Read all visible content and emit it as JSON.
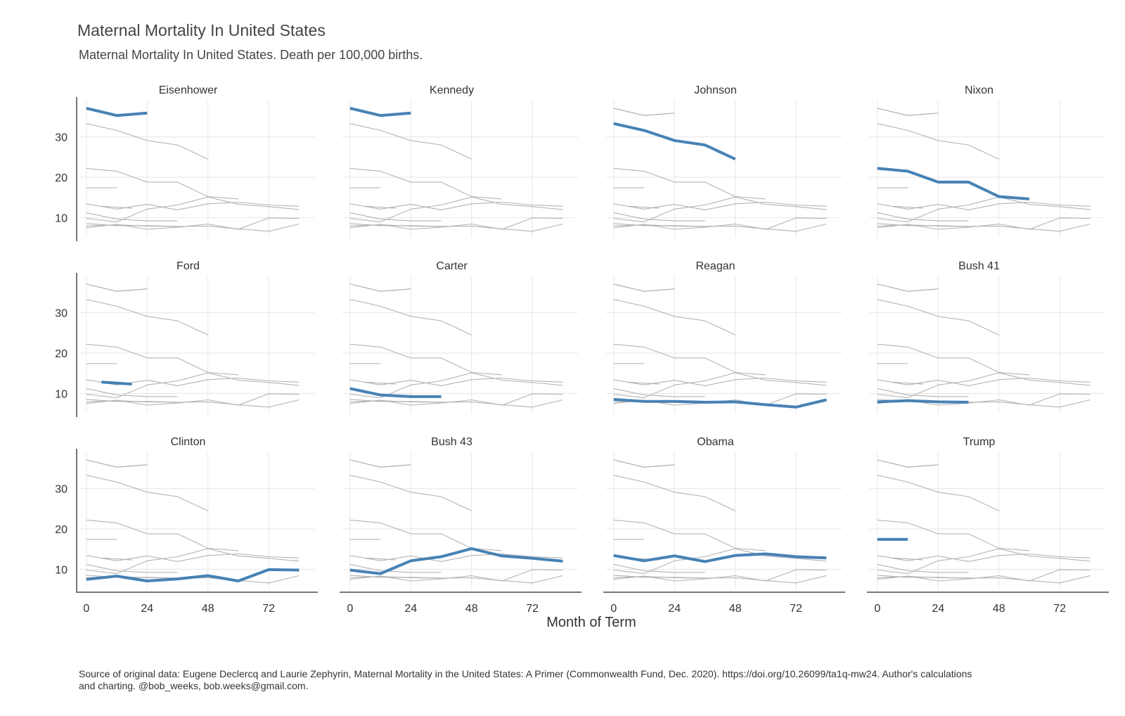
{
  "title": "Maternal Mortality In United States",
  "subtitle": "Maternal Mortality In United States. Death per 100,000 births.",
  "caption": "Source of original data: Eugene Declercq and Laurie Zephyrin, Maternal Mortality in the United States: A Primer (Commonwealth Fund, Dec. 2020). https://doi.org/10.26099/ta1q-mw24. Author's calculations and charting. @bob_weeks, bob.weeks@gmail.com.",
  "colors": {
    "highlight": "#4682b4",
    "background_lines": "#b3b3b3",
    "grid": "#e6e6e6",
    "axis": "#777777"
  },
  "chart_data": {
    "type": "line",
    "facet": "small-multiples-4x3",
    "xlabel": "Month of Term",
    "ylabel": "",
    "xticks": [
      0,
      24,
      48,
      72
    ],
    "yticks": [
      10,
      20,
      30
    ],
    "xlim": [
      -3,
      90
    ],
    "ylim": [
      5,
      39
    ],
    "grid": true,
    "series": [
      {
        "name": "Eisenhower",
        "x": [
          0,
          12,
          24
        ],
        "y": [
          37.1,
          35.3,
          35.9
        ]
      },
      {
        "name": "Kennedy",
        "x": [
          0,
          12,
          24
        ],
        "y": [
          37.1,
          35.3,
          35.9
        ]
      },
      {
        "name": "Johnson",
        "x": [
          0,
          12,
          24,
          36,
          48
        ],
        "y": [
          33.3,
          31.6,
          29.1,
          28.0,
          24.5
        ]
      },
      {
        "name": "Nixon",
        "x": [
          0,
          12,
          24,
          36,
          48,
          60
        ],
        "y": [
          22.2,
          21.5,
          18.8,
          18.8,
          15.2,
          14.6
        ]
      },
      {
        "name": "Ford",
        "x": [
          6,
          18
        ],
        "y": [
          12.8,
          12.3
        ]
      },
      {
        "name": "Carter",
        "x": [
          0,
          12,
          24,
          36
        ],
        "y": [
          11.2,
          9.6,
          9.2,
          9.2
        ]
      },
      {
        "name": "Reagan",
        "x": [
          0,
          12,
          24,
          36,
          48,
          60,
          72,
          84
        ],
        "y": [
          8.5,
          8.0,
          8.0,
          7.8,
          7.9,
          7.2,
          6.6,
          8.4
        ]
      },
      {
        "name": "Bush 41",
        "x": [
          0,
          12,
          24,
          36
        ],
        "y": [
          7.9,
          8.2,
          7.9,
          7.8
        ]
      },
      {
        "name": "Clinton",
        "x": [
          0,
          12,
          24,
          36,
          48,
          60,
          72,
          84
        ],
        "y": [
          7.5,
          8.3,
          7.1,
          7.6,
          8.4,
          7.1,
          9.9,
          9.8
        ]
      },
      {
        "name": "Bush 43",
        "x": [
          0,
          12,
          24,
          36,
          48,
          60,
          72,
          84
        ],
        "y": [
          9.8,
          8.9,
          12.1,
          13.1,
          15.1,
          13.3,
          12.7,
          12.0
        ]
      },
      {
        "name": "Obama",
        "x": [
          0,
          12,
          24,
          36,
          48,
          60,
          72,
          84
        ],
        "y": [
          13.4,
          12.1,
          13.3,
          11.9,
          13.4,
          13.8,
          13.1,
          12.8
        ]
      },
      {
        "name": "Trump",
        "x": [
          0,
          12
        ],
        "y": [
          17.4,
          17.4
        ]
      }
    ]
  }
}
